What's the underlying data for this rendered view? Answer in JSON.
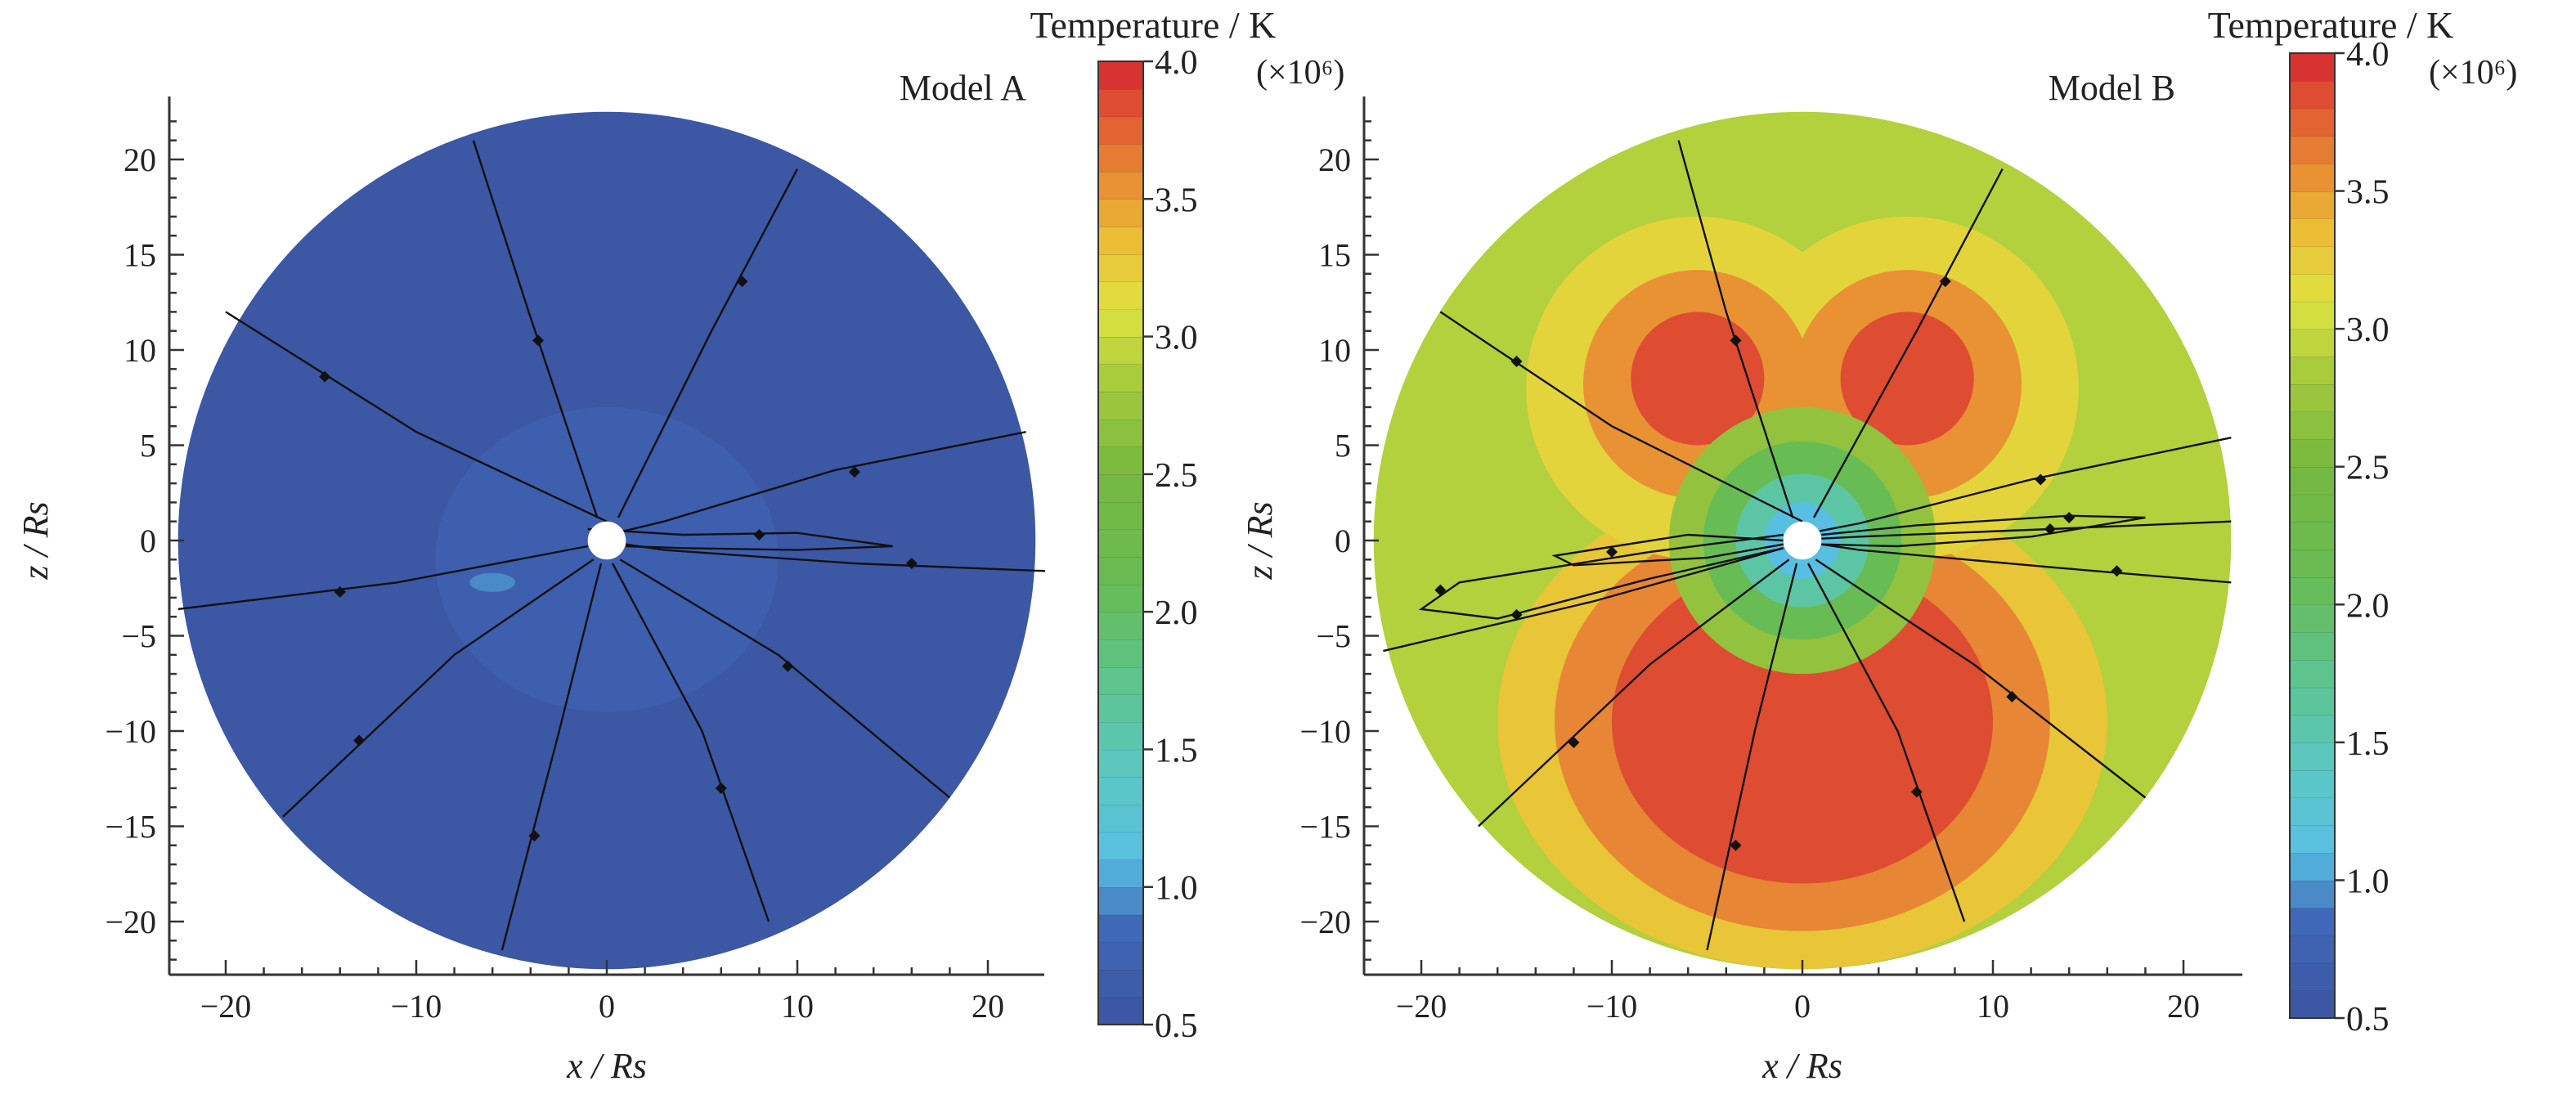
{
  "chart_data": [
    {
      "type": "heatmap",
      "title": "Model A",
      "xlabel": "x / Rs",
      "ylabel": "z / Rs",
      "xlim": [
        -23,
        23
      ],
      "ylim": [
        -23,
        23
      ],
      "x_ticks": [
        -20,
        -10,
        0,
        10,
        20
      ],
      "y_ticks": [
        -20,
        -15,
        -10,
        -5,
        0,
        5,
        10,
        15,
        20
      ],
      "colorbar": {
        "title": "Temperature / K",
        "unit": "(×10⁶)",
        "range": [
          0.5,
          4.0
        ],
        "tick_values": [
          0.5,
          1.0,
          1.5,
          2.0,
          2.5,
          3.0,
          3.5,
          4.0
        ],
        "tick_labels": [
          "0.5",
          "1.0",
          "1.5",
          "2.0",
          "2.5",
          "3.0",
          "3.5",
          "4.0"
        ]
      },
      "field": {
        "domain_radius": 22.5,
        "inner_radius": 1,
        "background_value": 0.55,
        "regions": [
          {
            "shape": "ellipse",
            "cx": 0,
            "cz": -1,
            "rx": 9,
            "rz": 8,
            "value": 0.7
          },
          {
            "shape": "ellipse",
            "cx": -6,
            "cz": -2.2,
            "rx": 1.2,
            "rz": 0.5,
            "value": 0.95
          }
        ]
      },
      "field_lines": [
        {
          "points": [
            [
              -20,
              12
            ],
            [
              -10,
              5.7
            ],
            [
              0,
              1
            ]
          ],
          "arrow_at": [
            -14.8,
            8.6
          ]
        },
        {
          "points": [
            [
              -7,
              21
            ],
            [
              -4.1,
              12
            ],
            [
              -0.5,
              1.2
            ]
          ],
          "arrow_at": [
            -3.6,
            10.5
          ]
        },
        {
          "points": [
            [
              10,
              19.5
            ],
            [
              5.5,
              11
            ],
            [
              0.6,
              1.2
            ]
          ],
          "arrow_at": [
            7.1,
            13.6
          ]
        },
        {
          "points": [
            [
              22,
              5.7
            ],
            [
              12,
              3.7
            ],
            [
              3,
              1
            ],
            [
              0.9,
              0.5
            ]
          ],
          "arrow_at": [
            13,
            3.6
          ]
        },
        {
          "points": [
            [
              23,
              -1.6
            ],
            [
              13,
              -1.2
            ],
            [
              3,
              -0.5
            ],
            [
              1,
              -0.2
            ]
          ],
          "arrow_at": [
            16,
            -1.2
          ]
        },
        {
          "points": [
            [
              18,
              -13.5
            ],
            [
              9,
              -6
            ],
            [
              0.7,
              -1
            ]
          ],
          "arrow_at": [
            9.5,
            -6.6
          ]
        },
        {
          "points": [
            [
              8.5,
              -20
            ],
            [
              5,
              -10
            ],
            [
              0.3,
              -1.2
            ]
          ],
          "arrow_at": [
            6,
            -13
          ]
        },
        {
          "points": [
            [
              -5.5,
              -21.5
            ],
            [
              -2.5,
              -10
            ],
            [
              -0.3,
              -1.2
            ]
          ],
          "arrow_at": [
            -3.8,
            -15.5
          ]
        },
        {
          "points": [
            [
              -17,
              -14.5
            ],
            [
              -8,
              -6
            ],
            [
              -0.7,
              -1
            ]
          ],
          "arrow_at": [
            -13,
            -10.5
          ]
        },
        {
          "points": [
            [
              -22.5,
              -3.6
            ],
            [
              -11,
              -2.2
            ],
            [
              -1,
              -0.3
            ]
          ],
          "arrow_at": [
            -14,
            -2.7
          ]
        },
        {
          "points": [
            [
              -1,
              0.6
            ],
            [
              4,
              0.3
            ],
            [
              10,
              0.4
            ],
            [
              15,
              -0.3
            ],
            [
              10,
              -0.5
            ],
            [
              4,
              -0.4
            ],
            [
              1,
              -0.3
            ]
          ],
          "arrow_at": [
            8,
            0.3
          ]
        }
      ]
    },
    {
      "type": "heatmap",
      "title": "Model B",
      "xlabel": "x / Rs",
      "ylabel": "z / Rs",
      "xlim": [
        -23,
        23
      ],
      "ylim": [
        -23,
        23
      ],
      "x_ticks": [
        -20,
        -10,
        0,
        10,
        20
      ],
      "y_ticks": [
        -20,
        -15,
        -10,
        -5,
        0,
        5,
        10,
        15,
        20
      ],
      "colorbar": {
        "title": "Temperature / K",
        "unit": "(×10⁶)",
        "range": [
          0.5,
          4.0
        ],
        "tick_values": [
          0.5,
          1.0,
          1.5,
          2.0,
          2.5,
          3.0,
          3.5,
          4.0
        ],
        "tick_labels": [
          "0.5",
          "1.0",
          "1.5",
          "2.0",
          "2.5",
          "3.0",
          "3.5",
          "4.0"
        ]
      },
      "field": {
        "domain_radius": 22.5,
        "inner_radius": 1,
        "background_value": 2.9,
        "regions": [
          {
            "shape": "ellipse",
            "cx": 0,
            "cz": -9.5,
            "rx": 16,
            "rz": 13,
            "value": 3.3
          },
          {
            "shape": "ellipse",
            "cx": 0,
            "cz": -9.5,
            "rx": 13,
            "rz": 11,
            "value": 3.6
          },
          {
            "shape": "ellipse",
            "cx": 0,
            "cz": -9.5,
            "rx": 10,
            "rz": 8.5,
            "value": 3.85
          },
          {
            "shape": "ellipse",
            "cx": -5.5,
            "cz": 8,
            "rx": 9,
            "rz": 9,
            "value": 3.2
          },
          {
            "shape": "ellipse",
            "cx": 5.5,
            "cz": 8,
            "rx": 9,
            "rz": 9,
            "value": 3.2
          },
          {
            "shape": "ellipse",
            "cx": -5.5,
            "cz": 8.2,
            "rx": 6,
            "rz": 6,
            "value": 3.55
          },
          {
            "shape": "ellipse",
            "cx": 5.5,
            "cz": 8.2,
            "rx": 6,
            "rz": 6,
            "value": 3.55
          },
          {
            "shape": "ellipse",
            "cx": -5.5,
            "cz": 8.5,
            "rx": 3.5,
            "rz": 3.5,
            "value": 3.85
          },
          {
            "shape": "ellipse",
            "cx": 5.5,
            "cz": 8.5,
            "rx": 3.5,
            "rz": 3.5,
            "value": 3.85
          },
          {
            "shape": "ellipse",
            "cx": 0,
            "cz": 0,
            "rx": 7,
            "rz": 7,
            "value": 2.7
          },
          {
            "shape": "ellipse",
            "cx": 0,
            "cz": 0,
            "rx": 5.2,
            "rz": 5.2,
            "value": 2.1
          },
          {
            "shape": "ellipse",
            "cx": 0,
            "cz": 0,
            "rx": 3.5,
            "rz": 3.5,
            "value": 1.6
          },
          {
            "shape": "ellipse",
            "cx": 0,
            "cz": 0,
            "rx": 2,
            "rz": 2,
            "value": 1.1
          }
        ]
      },
      "field_lines": [
        {
          "points": [
            [
              -19,
              12
            ],
            [
              -10,
              6
            ],
            [
              0,
              1
            ]
          ],
          "arrow_at": [
            -15,
            9.4
          ]
        },
        {
          "points": [
            [
              -6.5,
              21
            ],
            [
              -4,
              12
            ],
            [
              -0.5,
              1.2
            ]
          ],
          "arrow_at": [
            -3.5,
            10.5
          ]
        },
        {
          "points": [
            [
              10.5,
              19.5
            ],
            [
              6,
              11
            ],
            [
              0.6,
              1.2
            ]
          ],
          "arrow_at": [
            7.5,
            13.6
          ]
        },
        {
          "points": [
            [
              22.5,
              5.4
            ],
            [
              12,
              3.2
            ],
            [
              3,
              0.9
            ],
            [
              0.9,
              0.5
            ]
          ],
          "arrow_at": [
            12.5,
            3.2
          ]
        },
        {
          "points": [
            [
              22.5,
              1
            ],
            [
              13,
              0.6
            ],
            [
              3,
              0.2
            ],
            [
              1,
              0.1
            ]
          ],
          "arrow_at": [
            13,
            0.6
          ]
        },
        {
          "points": [
            [
              22.5,
              -2.2
            ],
            [
              13,
              -1.4
            ],
            [
              3,
              -0.5
            ],
            [
              1,
              -0.2
            ]
          ],
          "arrow_at": [
            16.5,
            -1.6
          ]
        },
        {
          "points": [
            [
              18,
              -13.5
            ],
            [
              9,
              -6.5
            ],
            [
              0.7,
              -1
            ]
          ],
          "arrow_at": [
            11,
            -8.2
          ]
        },
        {
          "points": [
            [
              8.5,
              -20
            ],
            [
              5,
              -10
            ],
            [
              0.3,
              -1.2
            ]
          ],
          "arrow_at": [
            6,
            -13.2
          ]
        },
        {
          "points": [
            [
              -5,
              -21.5
            ],
            [
              -2.5,
              -10
            ],
            [
              -0.3,
              -1.2
            ]
          ],
          "arrow_at": [
            -3.5,
            -16
          ]
        },
        {
          "points": [
            [
              -17,
              -15
            ],
            [
              -8,
              -6.5
            ],
            [
              -0.7,
              -1
            ]
          ],
          "arrow_at": [
            -12,
            -10.6
          ]
        },
        {
          "points": [
            [
              -22,
              -5.8
            ],
            [
              -11,
              -3.2
            ],
            [
              -1,
              -0.4
            ]
          ],
          "arrow_at": [
            -15,
            -3.9
          ]
        },
        {
          "points": [
            [
              -1,
              0.3
            ],
            [
              -8,
              -0.6
            ],
            [
              -18,
              -2.2
            ],
            [
              -20,
              -3.6
            ],
            [
              -16,
              -4.1
            ],
            [
              -8,
              -2
            ],
            [
              -1,
              -0.4
            ]
          ],
          "arrow_at": [
            -19,
            -2.6
          ]
        },
        {
          "points": [
            [
              1,
              0.3
            ],
            [
              6,
              0.8
            ],
            [
              14,
              1.3
            ],
            [
              18,
              1.2
            ],
            [
              12,
              0.2
            ],
            [
              5,
              -0.3
            ],
            [
              1,
              -0.2
            ]
          ],
          "arrow_at": [
            14,
            1.2
          ]
        },
        {
          "points": [
            [
              -1,
              0
            ],
            [
              -6,
              0.3
            ],
            [
              -13,
              -0.8
            ],
            [
              -12,
              -1.3
            ],
            [
              -5,
              -0.9
            ],
            [
              -1,
              -0.2
            ]
          ],
          "arrow_at": [
            -10,
            -0.6
          ]
        }
      ]
    }
  ]
}
